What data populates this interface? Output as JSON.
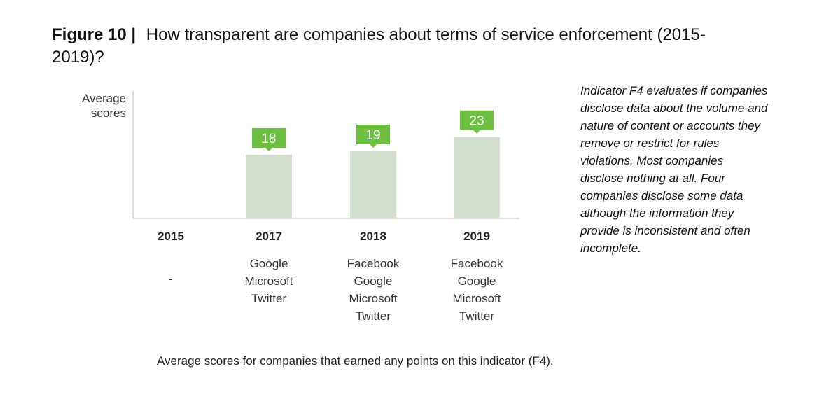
{
  "figure": {
    "label": "Figure  10 |",
    "title": "How transparent are companies about terms of service enforcement (2015-2019)?"
  },
  "chart_data": {
    "type": "bar",
    "ylabel": "Average scores",
    "categories": [
      "2015",
      "2017",
      "2018",
      "2019"
    ],
    "values": [
      null,
      18,
      19,
      23
    ],
    "data_labels": [
      "",
      "18",
      "19",
      "23"
    ],
    "ylim": [
      0,
      36
    ],
    "grid": false,
    "bar_color": "#d3e0cf",
    "label_color": "#6cbf3f",
    "companies": [
      [
        "-"
      ],
      [
        "Google",
        "Microsoft",
        "Twitter"
      ],
      [
        "Facebook",
        "Google",
        "Microsoft",
        "Twitter"
      ],
      [
        "Facebook",
        "Google",
        "Microsoft",
        "Twitter"
      ]
    ]
  },
  "side_note": "Indicator F4 evaluates if companies disclose data about the volume and nature of content or accounts they remove or restrict for rules violations. Most companies disclose nothing at all. Four companies disclose some data although the information they provide is inconsistent and often incomplete.",
  "footnote": "Average scores for companies that earned any points on this indicator (F4)."
}
